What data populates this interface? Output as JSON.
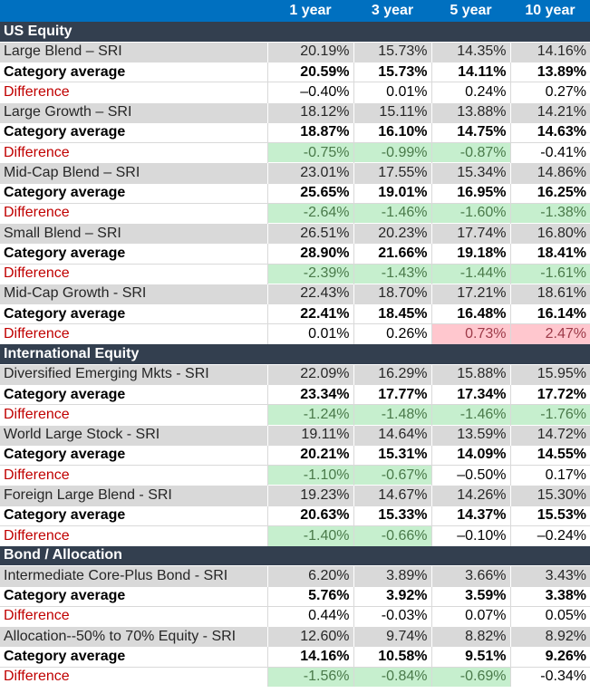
{
  "header": {
    "label": "",
    "columns": [
      "1 year",
      "3 year",
      "5 year",
      "10 year"
    ]
  },
  "colors": {
    "header": "#0070c0",
    "section": "#333f4f",
    "fund_row": "#d9d9d9",
    "difference_label": "#c00000",
    "good_fill": "#c6efce",
    "bad_fill": "#ffc7ce"
  },
  "sections": [
    {
      "title": "US Equity",
      "groups": [
        {
          "fund": {
            "label": "Large Blend – SRI",
            "values": [
              "20.19%",
              "15.73%",
              "14.35%",
              "14.16%"
            ]
          },
          "category": {
            "label": "Category average",
            "values": [
              "20.59%",
              "15.73%",
              "14.11%",
              "13.89%"
            ]
          },
          "difference": {
            "label": "Difference",
            "values": [
              "–0.40%",
              "0.01%",
              "0.24%",
              "0.27%"
            ],
            "shade": [
              "",
              "",
              "",
              ""
            ]
          }
        },
        {
          "fund": {
            "label": "Large Growth – SRI",
            "values": [
              "18.12%",
              "15.11%",
              "13.88%",
              "14.21%"
            ]
          },
          "category": {
            "label": "Category average",
            "values": [
              "18.87%",
              "16.10%",
              "14.75%",
              "14.63%"
            ]
          },
          "difference": {
            "label": "Difference",
            "values": [
              "-0.75%",
              "-0.99%",
              "-0.87%",
              "-0.41%"
            ],
            "shade": [
              "neg",
              "neg",
              "neg",
              ""
            ]
          }
        },
        {
          "fund": {
            "label": "Mid-Cap Blend – SRI",
            "values": [
              "23.01%",
              "17.55%",
              "15.34%",
              "14.86%"
            ]
          },
          "category": {
            "label": "Category average",
            "values": [
              "25.65%",
              "19.01%",
              "16.95%",
              "16.25%"
            ]
          },
          "difference": {
            "label": "Difference",
            "values": [
              "-2.64%",
              "-1.46%",
              "-1.60%",
              "-1.38%"
            ],
            "shade": [
              "neg",
              "neg",
              "neg",
              "neg"
            ]
          }
        },
        {
          "fund": {
            "label": "Small Blend – SRI",
            "values": [
              "26.51%",
              "20.23%",
              "17.74%",
              "16.80%"
            ]
          },
          "category": {
            "label": "Category average",
            "values": [
              "28.90%",
              "21.66%",
              "19.18%",
              "18.41%"
            ]
          },
          "difference": {
            "label": "Difference",
            "values": [
              "-2.39%",
              "-1.43%",
              "-1.44%",
              "-1.61%"
            ],
            "shade": [
              "neg",
              "neg",
              "neg",
              "neg"
            ]
          }
        },
        {
          "fund": {
            "label": "Mid-Cap Growth - SRI",
            "values": [
              "22.43%",
              "18.70%",
              "17.21%",
              "18.61%"
            ]
          },
          "category": {
            "label": "Category average",
            "values": [
              "22.41%",
              "18.45%",
              "16.48%",
              "16.14%"
            ]
          },
          "difference": {
            "label": "Difference",
            "values": [
              "0.01%",
              "0.26%",
              "0.73%",
              "2.47%"
            ],
            "shade": [
              "",
              "",
              "pos",
              "pos"
            ]
          }
        }
      ]
    },
    {
      "title": "International Equity",
      "groups": [
        {
          "fund": {
            "label": "Diversified Emerging Mkts - SRI",
            "values": [
              "22.09%",
              "16.29%",
              "15.88%",
              "15.95%"
            ]
          },
          "category": {
            "label": "Category average",
            "values": [
              "23.34%",
              "17.77%",
              "17.34%",
              "17.72%"
            ]
          },
          "difference": {
            "label": "Difference",
            "values": [
              "-1.24%",
              "-1.48%",
              "-1.46%",
              "-1.76%"
            ],
            "shade": [
              "neg",
              "neg",
              "neg",
              "neg"
            ]
          }
        },
        {
          "fund": {
            "label": "World Large Stock - SRI",
            "values": [
              "19.11%",
              "14.64%",
              "13.59%",
              "14.72%"
            ]
          },
          "category": {
            "label": "Category average",
            "values": [
              "20.21%",
              "15.31%",
              "14.09%",
              "14.55%"
            ]
          },
          "difference": {
            "label": "Difference",
            "values": [
              "-1.10%",
              "-0.67%",
              "–0.50%",
              "0.17%"
            ],
            "shade": [
              "neg",
              "neg",
              "",
              ""
            ]
          }
        },
        {
          "fund": {
            "label": "Foreign Large Blend - SRI",
            "values": [
              "19.23%",
              "14.67%",
              "14.26%",
              "15.30%"
            ]
          },
          "category": {
            "label": "Category average",
            "values": [
              "20.63%",
              "15.33%",
              "14.37%",
              "15.53%"
            ]
          },
          "difference": {
            "label": "Difference",
            "values": [
              "-1.40%",
              "-0.66%",
              "–0.10%",
              "–0.24%"
            ],
            "shade": [
              "neg",
              "neg",
              "",
              ""
            ]
          }
        }
      ]
    },
    {
      "title": "Bond / Allocation",
      "groups": [
        {
          "fund": {
            "label": "Intermediate Core-Plus Bond - SRI",
            "values": [
              "6.20%",
              "3.89%",
              "3.66%",
              "3.43%"
            ]
          },
          "category": {
            "label": "Category average",
            "values": [
              "5.76%",
              "3.92%",
              "3.59%",
              "3.38%"
            ]
          },
          "difference": {
            "label": "Difference",
            "values": [
              "0.44%",
              "-0.03%",
              "0.07%",
              "0.05%"
            ],
            "shade": [
              "",
              "",
              "",
              ""
            ]
          }
        },
        {
          "fund": {
            "label": "Allocation--50% to 70% Equity - SRI",
            "values": [
              "12.60%",
              "9.74%",
              "8.82%",
              "8.92%"
            ]
          },
          "category": {
            "label": "Category average",
            "values": [
              "14.16%",
              "10.58%",
              "9.51%",
              "9.26%"
            ]
          },
          "difference": {
            "label": "Difference",
            "values": [
              "-1.56%",
              "-0.84%",
              "-0.69%",
              "-0.34%"
            ],
            "shade": [
              "neg",
              "neg",
              "neg",
              ""
            ]
          }
        }
      ]
    }
  ]
}
